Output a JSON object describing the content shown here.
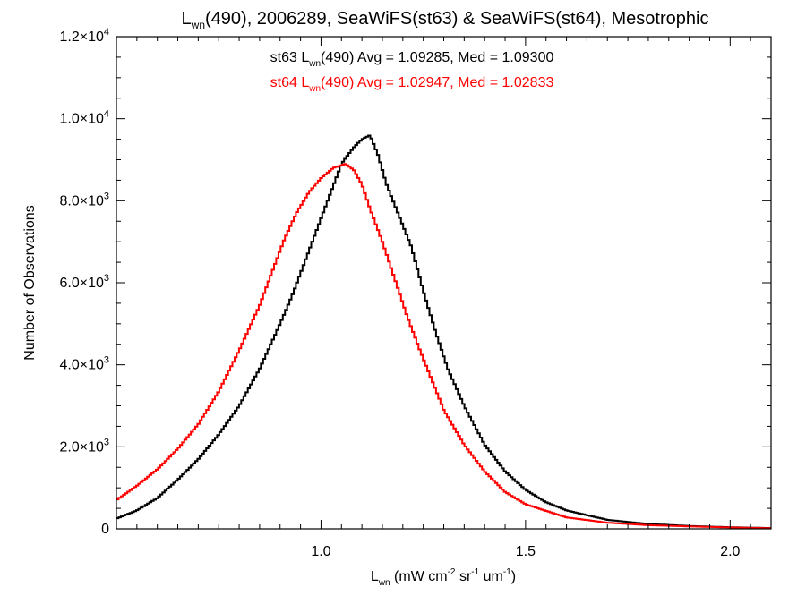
{
  "chart_data": {
    "type": "line",
    "title": {
      "pre": "L",
      "sub": "wn",
      "post": "(490), 2006289, SeaWiFS(st63) & SeaWiFS(st64), Mesotrophic"
    },
    "xlabel": {
      "pre": "L",
      "sub": "wn",
      "mid1": " (mW cm",
      "sup1": "-2",
      "mid2": " sr",
      "sup2": "-1",
      "mid3": " um",
      "sup3": "-1",
      "post": ")"
    },
    "ylabel": "Number of Observations",
    "xlim": [
      0.5,
      2.1
    ],
    "ylim": [
      0,
      12000
    ],
    "x_ticks": [
      {
        "v": 1.0,
        "label": "1.0"
      },
      {
        "v": 1.5,
        "label": "1.5"
      },
      {
        "v": 2.0,
        "label": "2.0"
      }
    ],
    "y_ticks": [
      {
        "v": 0,
        "mant": "0",
        "exp": ""
      },
      {
        "v": 2000,
        "mant": "2.0×10",
        "exp": "3"
      },
      {
        "v": 4000,
        "mant": "4.0×10",
        "exp": "3"
      },
      {
        "v": 6000,
        "mant": "6.0×10",
        "exp": "3"
      },
      {
        "v": 8000,
        "mant": "8.0×10",
        "exp": "3"
      },
      {
        "v": 10000,
        "mant": "1.0×10",
        "exp": "4"
      },
      {
        "v": 12000,
        "mant": "1.2×10",
        "exp": "4"
      }
    ],
    "legend": [
      {
        "pre": "st63 L",
        "sub": "wn",
        "post": "(490) Avg = 1.09285, Med = 1.09300",
        "color": "#000000"
      },
      {
        "pre": "st64 L",
        "sub": "wn",
        "post": "(490) Avg = 1.02947, Med = 1.02833",
        "color": "#ff0000"
      }
    ],
    "series": [
      {
        "color": "#000000",
        "style": "step",
        "x": [
          0.5,
          0.55,
          0.6,
          0.65,
          0.7,
          0.75,
          0.8,
          0.85,
          0.9,
          0.93,
          0.96,
          0.99,
          1.02,
          1.05,
          1.08,
          1.1,
          1.12,
          1.14,
          1.16,
          1.18,
          1.2,
          1.22,
          1.25,
          1.28,
          1.31,
          1.35,
          1.4,
          1.45,
          1.5,
          1.55,
          1.6,
          1.7,
          1.8,
          1.9,
          2.0,
          2.1
        ],
        "y": [
          250,
          450,
          750,
          1200,
          1700,
          2300,
          3000,
          3900,
          5000,
          5700,
          6500,
          7300,
          8100,
          8900,
          9300,
          9500,
          9600,
          9100,
          8400,
          7900,
          7400,
          6900,
          5800,
          4800,
          3900,
          3000,
          2050,
          1400,
          950,
          650,
          450,
          220,
          120,
          70,
          40,
          20
        ]
      },
      {
        "color": "#ff0000",
        "style": "step",
        "x": [
          0.5,
          0.55,
          0.6,
          0.65,
          0.7,
          0.75,
          0.8,
          0.85,
          0.88,
          0.91,
          0.94,
          0.97,
          1.0,
          1.03,
          1.06,
          1.08,
          1.1,
          1.12,
          1.15,
          1.18,
          1.21,
          1.24,
          1.27,
          1.3,
          1.35,
          1.4,
          1.45,
          1.5,
          1.6,
          1.7,
          1.8,
          1.9,
          2.0,
          2.1
        ],
        "y": [
          700,
          1050,
          1450,
          1950,
          2550,
          3350,
          4350,
          5450,
          6250,
          7050,
          7700,
          8200,
          8550,
          8800,
          8900,
          8750,
          8400,
          7800,
          7000,
          6100,
          5200,
          4400,
          3650,
          2900,
          2050,
          1400,
          900,
          600,
          280,
          150,
          90,
          60,
          35,
          15
        ]
      }
    ]
  }
}
